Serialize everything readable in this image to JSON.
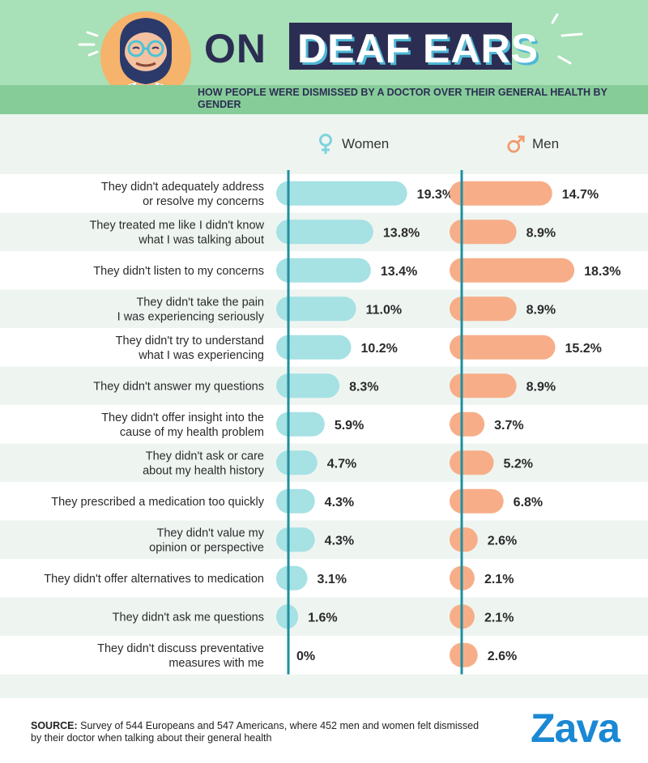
{
  "header": {
    "title_part1": "ON",
    "title_part2": "DEAF EARS",
    "subtitle": "HOW PEOPLE WERE DISMISSED BY A DOCTOR OVER THEIR GENERAL HEALTH BY GENDER"
  },
  "colors": {
    "women": "#a6e1e4",
    "men": "#f7ae88",
    "axis": "#1f8fa0",
    "row_white": "#ffffff",
    "row_alt": "#eef5f1",
    "header_bg": "#a8e0b8",
    "brand": "#1a88d4"
  },
  "chart_data": {
    "type": "bar",
    "orientation": "horizontal",
    "value_suffix": "%",
    "categories": [
      "They didn't adequately address\nor resolve my concerns",
      "They treated me like I didn't know\nwhat I was talking about",
      "They didn't listen to my concerns",
      "They didn't take the pain\nI was experiencing seriously",
      "They didn't try to understand\nwhat I was experiencing",
      "They didn't answer my questions",
      "They didn't offer insight into the\ncause of my health problem",
      "They didn't ask or care\nabout my health history",
      "They prescribed a medication too quickly",
      "They didn't value my\nopinion or perspective",
      "They didn't offer alternatives to medication",
      "They didn't ask me questions",
      "They didn't discuss preventative\nmeasures with me"
    ],
    "series": [
      {
        "name": "Women",
        "values": [
          19.3,
          13.8,
          13.4,
          11.0,
          10.2,
          8.3,
          5.9,
          4.7,
          4.3,
          4.3,
          3.1,
          1.6,
          0
        ],
        "labels": [
          "19.3%",
          "13.8%",
          "13.4%",
          "11.0%",
          "10.2%",
          "8.3%",
          "5.9%",
          "4.7%",
          "4.3%",
          "4.3%",
          "3.1%",
          "1.6%",
          "0%"
        ]
      },
      {
        "name": "Men",
        "values": [
          14.7,
          8.9,
          18.3,
          8.9,
          15.2,
          8.9,
          3.7,
          5.2,
          6.8,
          2.6,
          2.1,
          2.1,
          2.6
        ],
        "labels": [
          "14.7%",
          "8.9%",
          "18.3%",
          "8.9%",
          "15.2%",
          "8.9%",
          "3.7%",
          "5.2%",
          "6.8%",
          "2.6%",
          "2.1%",
          "2.1%",
          "2.6%"
        ]
      }
    ]
  },
  "footer": {
    "source_label": "SOURCE:",
    "source_text": "Survey of 544 Europeans and 547 Americans, where 452 men and women felt dismissed by their doctor when talking about their general health",
    "logo": "Zava"
  }
}
